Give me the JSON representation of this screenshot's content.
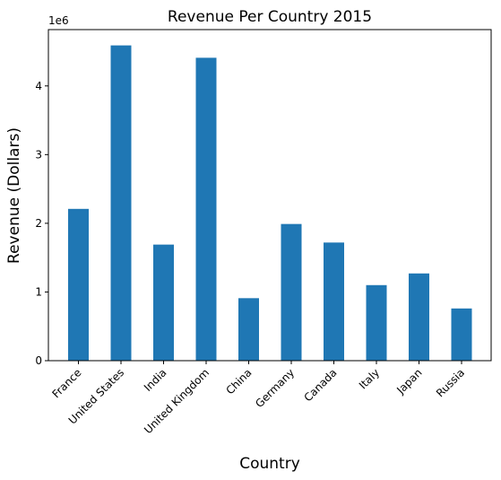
{
  "chart_data": {
    "type": "bar",
    "title": "Revenue Per Country 2015",
    "xlabel": "Country",
    "ylabel": "Revenue (Dollars)",
    "y_offset_label": "1e6",
    "categories": [
      "France",
      "United States",
      "India",
      "United Kingdom",
      "China",
      "Germany",
      "Canada",
      "Italy",
      "Japan",
      "Russia"
    ],
    "values": [
      2210000,
      4590000,
      1690000,
      4410000,
      910000,
      1990000,
      1720000,
      1100000,
      1270000,
      760000
    ],
    "ylim": [
      0,
      4820000
    ],
    "yticks": [
      0,
      1000000,
      2000000,
      3000000,
      4000000
    ],
    "ytick_labels": [
      "0",
      "1",
      "2",
      "3",
      "4"
    ],
    "bar_color": "#1f77b4",
    "grid": false
  }
}
